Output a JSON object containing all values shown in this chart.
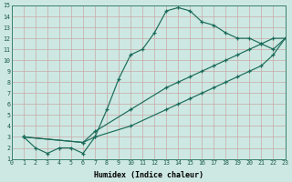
{
  "xlabel": "Humidex (Indice chaleur)",
  "xlim": [
    0,
    23
  ],
  "ylim": [
    1,
    15
  ],
  "xticks": [
    0,
    1,
    2,
    3,
    4,
    5,
    6,
    7,
    8,
    9,
    10,
    11,
    12,
    13,
    14,
    15,
    16,
    17,
    18,
    19,
    20,
    21,
    22,
    23
  ],
  "yticks": [
    1,
    2,
    3,
    4,
    5,
    6,
    7,
    8,
    9,
    10,
    11,
    12,
    13,
    14,
    15
  ],
  "bg_color": "#cde8e2",
  "grid_color": "#c8a8a8",
  "line_color": "#1a6b5a",
  "line1_x": [
    1,
    2,
    3,
    4,
    5,
    6,
    7,
    8,
    9,
    10,
    11,
    12,
    13,
    14,
    15,
    16,
    17,
    18,
    19,
    20,
    21,
    22,
    23
  ],
  "line1_y": [
    3.0,
    2.0,
    1.5,
    2.0,
    2.0,
    1.5,
    3.0,
    5.5,
    8.3,
    10.5,
    11.0,
    12.5,
    14.5,
    14.8,
    14.5,
    13.5,
    13.2,
    12.5,
    12.0,
    12.0,
    11.5,
    11.0,
    12.0
  ],
  "line2_x": [
    1,
    6,
    7,
    10,
    13,
    14,
    15,
    16,
    17,
    18,
    19,
    20,
    21,
    22,
    23
  ],
  "line2_y": [
    3.0,
    2.5,
    3.5,
    5.5,
    7.5,
    8.0,
    8.5,
    9.0,
    9.5,
    10.0,
    10.5,
    11.0,
    11.5,
    12.0,
    12.0
  ],
  "line3_x": [
    1,
    6,
    7,
    10,
    13,
    14,
    15,
    16,
    17,
    18,
    19,
    20,
    21,
    22,
    23
  ],
  "line3_y": [
    3.0,
    2.5,
    3.0,
    4.0,
    5.5,
    6.0,
    6.5,
    7.0,
    7.5,
    8.0,
    8.5,
    9.0,
    9.5,
    10.5,
    12.0
  ]
}
